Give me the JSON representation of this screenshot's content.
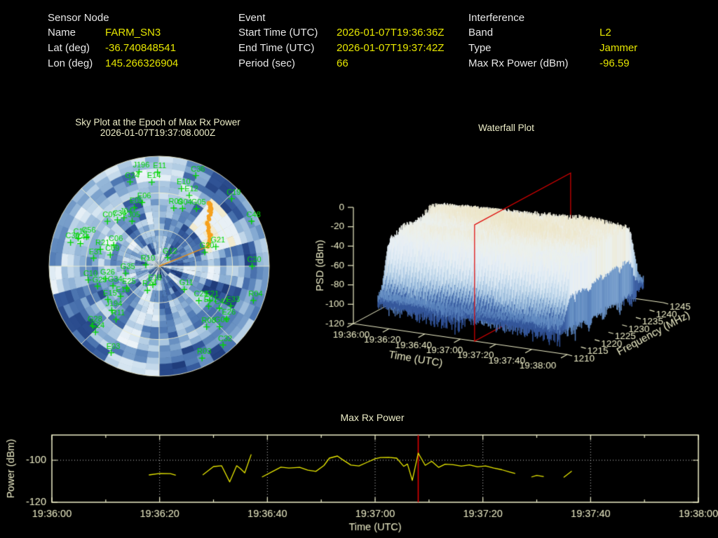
{
  "colors": {
    "background": "#000000",
    "axis_text": "#eeeec8",
    "grid_dotted": "#cfcfcf",
    "header_label": "#e8e8e8",
    "header_value": "#e6e600",
    "series_yellow": "#e8e800",
    "epoch_marker_red": "#dd0000",
    "satellite_green": "#00d600",
    "jammer_orange": "#f5a11d",
    "jammer_line_orange": "#e89018",
    "sky_palette": [
      "#1f3c7b",
      "#33589b",
      "#527cb5",
      "#86abd2",
      "#b3cde4",
      "#d8e7f2",
      "#eef4f9"
    ],
    "sky_highlight_cream": "#f2ebcf",
    "sky_highlight_white": "#e8f0f6"
  },
  "header": {
    "sensor_node": {
      "title": "Sensor Node",
      "rows": [
        {
          "label": "Name",
          "value": "FARM_SN3"
        },
        {
          "label": "Lat (deg)",
          "value": "-36.740848541"
        },
        {
          "label": "Lon (deg)",
          "value": "145.266326904"
        }
      ]
    },
    "event": {
      "title": "Event",
      "rows": [
        {
          "label": "Start Time (UTC)",
          "value": "2026-01-07T19:36:36Z"
        },
        {
          "label": "End Time (UTC)",
          "value": "2026-01-07T19:37:42Z"
        },
        {
          "label": "Period (sec)",
          "value": "66"
        }
      ]
    },
    "interference": {
      "title": "Interference",
      "rows": [
        {
          "label": "Band",
          "value": "L2"
        },
        {
          "label": "Type",
          "value": "Jammer"
        },
        {
          "label": "Max Rx Power (dBm)",
          "value": "-96.59"
        }
      ]
    }
  },
  "chart_data": [
    {
      "type": "heatmap",
      "subtype": "polar_sky_plot",
      "title": "Sky Plot at the Epoch of Max Rx Power",
      "subtitle": "2026-01-07T19:37:08.000Z",
      "elevation_rings_deg": [
        0,
        30,
        60
      ],
      "azimuth_spoke_step_deg": 45,
      "satellites": [
        {
          "id": "J196",
          "az": 348,
          "el": 11
        },
        {
          "id": "E11",
          "az": 359,
          "el": 13
        },
        {
          "id": "G24",
          "az": 341,
          "el": 17
        },
        {
          "id": "E14",
          "az": 355,
          "el": 21
        },
        {
          "id": "E10",
          "az": 16,
          "el": 24
        },
        {
          "id": "C36",
          "az": 22,
          "el": 10
        },
        {
          "id": "E12",
          "az": 23,
          "el": 27
        },
        {
          "id": "C19",
          "az": 47,
          "el": 9
        },
        {
          "id": "C48",
          "az": 64,
          "el": 6
        },
        {
          "id": "G05",
          "az": 33,
          "el": 34
        },
        {
          "id": "R09",
          "az": 14,
          "el": 41
        },
        {
          "id": "G04",
          "az": 22,
          "el": 39
        },
        {
          "id": "E06",
          "az": 345,
          "el": 36
        },
        {
          "id": "E05",
          "az": 337,
          "el": 38
        },
        {
          "id": "C07",
          "az": 311,
          "el": 34
        },
        {
          "id": "C34",
          "az": 318,
          "el": 39
        },
        {
          "id": "J05",
          "az": 329,
          "el": 47
        },
        {
          "id": "J04",
          "az": 324,
          "el": 41
        },
        {
          "id": "C16",
          "az": 289,
          "el": 20
        },
        {
          "id": "C56",
          "az": 292,
          "el": 26
        },
        {
          "id": "C30",
          "az": 285,
          "el": 15
        },
        {
          "id": "C44",
          "az": 286,
          "el": 23
        },
        {
          "id": "C06",
          "az": 295,
          "el": 49
        },
        {
          "id": "R21",
          "az": 286,
          "el": 40
        },
        {
          "id": "C09",
          "az": 283,
          "el": 49
        },
        {
          "id": "E31",
          "az": 277,
          "el": 36
        },
        {
          "id": "G12",
          "az": 45,
          "el": 80
        },
        {
          "id": "R10",
          "az": 276,
          "el": 79
        },
        {
          "id": "G35",
          "az": 258,
          "el": 62
        },
        {
          "id": "C10",
          "az": 259,
          "el": 31
        },
        {
          "id": "G26",
          "az": 257,
          "el": 45
        },
        {
          "id": "G29",
          "az": 252,
          "el": 37
        },
        {
          "id": "G34",
          "az": 247,
          "el": 49
        },
        {
          "id": "E25",
          "az": 236,
          "el": 58
        },
        {
          "id": "E15",
          "az": 237,
          "el": 40
        },
        {
          "id": "E16",
          "az": 232,
          "el": 50
        },
        {
          "id": "J194",
          "az": 227,
          "el": 37
        },
        {
          "id": "R11",
          "az": 219,
          "el": 34
        },
        {
          "id": "G28",
          "az": 228,
          "el": 17
        },
        {
          "id": "C24",
          "az": 224,
          "el": 15
        },
        {
          "id": "E03",
          "az": 209,
          "el": 9
        },
        {
          "id": "R03",
          "az": 155,
          "el": 7
        },
        {
          "id": "C32",
          "az": 141,
          "el": 7
        },
        {
          "id": "R08",
          "az": 142,
          "el": 27
        },
        {
          "id": "G06",
          "az": 135,
          "el": 20
        },
        {
          "id": "E26",
          "az": 128,
          "el": 20
        },
        {
          "id": "E33",
          "az": 119,
          "el": 23
        },
        {
          "id": "C42",
          "az": 125,
          "el": 30
        },
        {
          "id": "E01",
          "az": 129,
          "el": 38
        },
        {
          "id": "C29",
          "az": 131,
          "el": 47
        },
        {
          "id": "E21",
          "az": 124,
          "el": 40
        },
        {
          "id": "G11",
          "az": 133,
          "el": 62
        },
        {
          "id": "R04",
          "az": 110,
          "el": 8
        },
        {
          "id": "C20",
          "az": 90,
          "el": 14
        },
        {
          "id": "G21",
          "az": 71,
          "el": 41
        },
        {
          "id": "G20",
          "az": 73,
          "el": 51
        },
        {
          "id": "E18",
          "az": 199,
          "el": 74
        },
        {
          "id": "R24",
          "az": 206,
          "el": 68
        }
      ],
      "jammer_track": {
        "waypoints": [
          {
            "az": 39,
            "el": 24
          },
          {
            "az": 44,
            "el": 30
          },
          {
            "az": 49,
            "el": 38
          },
          {
            "az": 58,
            "el": 41
          },
          {
            "az": 68,
            "el": 47
          }
        ],
        "highlight_sector": {
          "az_range": [
            34,
            72
          ],
          "r_range": [
            0.45,
            0.78
          ]
        }
      }
    },
    {
      "type": "heatmap",
      "subtype": "3d_waterfall_surface",
      "title": "Waterfall Plot",
      "xlabel": "Time (UTC)",
      "ylabel": "Frequency (MHz)",
      "zlabel": "PSD (dBm)",
      "x_ticks": [
        "19:36:00",
        "19:36:20",
        "19:36:40",
        "19:37:00",
        "19:37:20",
        "19:37:40",
        "19:38:00"
      ],
      "y_ticks": [
        1210,
        1215,
        1220,
        1225,
        1230,
        1235,
        1240,
        1245
      ],
      "z_ticks": [
        0,
        -20,
        -40,
        -60,
        -80,
        -100,
        -120
      ],
      "zlim": [
        -120,
        0
      ],
      "summary": {
        "noise_floor_dbm": -95,
        "plateau_dbm": -32,
        "peak_dbm": -18,
        "plateau_freq_range_mhz": [
          1214,
          1241
        ]
      },
      "epoch_plane": {
        "time_utc": "19:37:08",
        "t_fraction": 0.5667
      }
    },
    {
      "type": "line",
      "title": "Max Rx Power",
      "xlabel": "Time (UTC)",
      "ylabel": "Power (dBm)",
      "x_ticks": [
        "19:36:00",
        "19:36:20",
        "19:36:40",
        "19:37:00",
        "19:37:20",
        "19:37:40",
        "19:38:00"
      ],
      "x_tick_sec": [
        0,
        20,
        40,
        60,
        80,
        100,
        120
      ],
      "minor_tick_sec": [
        10,
        30,
        50,
        70,
        90,
        110
      ],
      "y_ticks": [
        -100,
        -120
      ],
      "ylim": [
        -120,
        -88
      ],
      "xlim_sec": [
        0,
        120
      ],
      "x_start_utc": "19:36:00",
      "dotted_hline_dbm": -100,
      "epoch_marker": {
        "time_utc": "19:37:08",
        "t_sec": 68
      },
      "segments": [
        [
          [
            18,
            -107
          ],
          [
            20,
            -106.3
          ],
          [
            22,
            -106.4
          ],
          [
            23,
            -107.1
          ]
        ],
        [
          [
            28,
            -107
          ],
          [
            30,
            -103
          ],
          [
            31.5,
            -102.6
          ],
          [
            33,
            -110.3
          ],
          [
            34.3,
            -102.6
          ],
          [
            35,
            -104
          ],
          [
            35.8,
            -106
          ],
          [
            37,
            -97.2
          ]
        ],
        [
          [
            39,
            -108
          ],
          [
            41,
            -105.3
          ],
          [
            42.5,
            -103.3
          ],
          [
            44,
            -103.7
          ],
          [
            46,
            -103.4
          ],
          [
            47.5,
            -104.7
          ],
          [
            49,
            -105.3
          ],
          [
            50.5,
            -102.5
          ],
          [
            51.5,
            -99
          ],
          [
            53,
            -98
          ],
          [
            54,
            -99.8
          ],
          [
            55.5,
            -102.3
          ],
          [
            57,
            -102.7
          ],
          [
            58.5,
            -101
          ],
          [
            60,
            -99.3
          ],
          [
            61,
            -98.7
          ],
          [
            62.5,
            -98.6
          ],
          [
            64,
            -99
          ],
          [
            65.3,
            -102.9
          ],
          [
            66,
            -101.8
          ],
          [
            66.9,
            -109.6
          ],
          [
            68,
            -96.59
          ],
          [
            69.3,
            -102.4
          ],
          [
            70.5,
            -100.5
          ],
          [
            71.8,
            -103.4
          ],
          [
            73,
            -101.9
          ],
          [
            74.5,
            -102.1
          ],
          [
            76,
            -102.8
          ],
          [
            77.5,
            -102.2
          ],
          [
            79,
            -103.1
          ],
          [
            80.5,
            -102.7
          ],
          [
            82,
            -103.7
          ],
          [
            83.5,
            -104.5
          ],
          [
            85,
            -105.6
          ],
          [
            86,
            -106.3
          ]
        ],
        [
          [
            89,
            -108
          ],
          [
            90,
            -107.2
          ],
          [
            91.3,
            -107.8
          ]
        ],
        [
          [
            95,
            -108.2
          ],
          [
            96.5,
            -105.2
          ]
        ]
      ]
    }
  ]
}
